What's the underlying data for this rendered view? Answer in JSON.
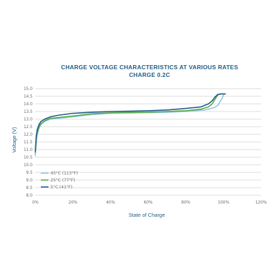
{
  "chart_data": {
    "type": "line",
    "title": "CHARGE VOLTAGE CHARACTERISTICS AT VARIOUS RATES",
    "subtitle": "CHARGE 0.2C",
    "xlabel": "State of Charge",
    "ylabel": "Voltage (V)",
    "xlim": [
      0,
      120
    ],
    "ylim": [
      8.0,
      15.0
    ],
    "x_ticks": [
      "0%",
      "20%",
      "40%",
      "60%",
      "80%",
      "100%",
      "120%"
    ],
    "y_ticks": [
      "15.0",
      "14.5",
      "14.0",
      "13.5",
      "13.0",
      "12.5",
      "12.0",
      "11.5",
      "11.0",
      "10.5",
      "10.0",
      "9.5",
      "9.0",
      "8.5",
      "8.0"
    ],
    "grid": true,
    "legend_position": "bottom-left",
    "series": [
      {
        "name": "45°C (113°F)",
        "color": "#8ec8e0",
        "x": [
          0,
          0.5,
          1,
          2,
          3,
          5,
          8,
          12,
          20,
          30,
          40,
          50,
          60,
          70,
          80,
          90,
          93,
          95,
          97,
          98.5,
          99.5,
          100
        ],
        "y": [
          10.6,
          11.5,
          12.0,
          12.4,
          12.65,
          12.85,
          13.0,
          13.05,
          13.15,
          13.3,
          13.38,
          13.4,
          13.42,
          13.45,
          13.5,
          13.6,
          13.68,
          13.75,
          13.9,
          14.2,
          14.4,
          14.6
        ]
      },
      {
        "name": "25°C (77°F)",
        "color": "#5aa845",
        "x": [
          0,
          0.5,
          1,
          2,
          3,
          5,
          8,
          12,
          20,
          30,
          40,
          50,
          60,
          70,
          80,
          88,
          92,
          94,
          95.5,
          97,
          98.5,
          101
        ],
        "y": [
          10.8,
          11.7,
          12.1,
          12.5,
          12.7,
          12.9,
          13.05,
          13.1,
          13.2,
          13.35,
          13.42,
          13.44,
          13.45,
          13.5,
          13.55,
          13.65,
          13.8,
          14.0,
          14.3,
          14.6,
          14.65,
          14.65
        ]
      },
      {
        "name": "5°C (41°F)",
        "color": "#1f5c8a",
        "x": [
          0,
          0.5,
          1,
          2,
          3,
          5,
          8,
          10,
          12,
          20,
          30,
          40,
          50,
          60,
          70,
          80,
          88,
          92,
          94,
          95.5,
          97,
          98.5,
          101
        ],
        "y": [
          10.9,
          11.9,
          12.3,
          12.65,
          12.85,
          13.0,
          13.15,
          13.2,
          13.25,
          13.38,
          13.45,
          13.5,
          13.52,
          13.55,
          13.6,
          13.7,
          13.8,
          14.0,
          14.2,
          14.45,
          14.62,
          14.65,
          14.65
        ]
      }
    ]
  }
}
